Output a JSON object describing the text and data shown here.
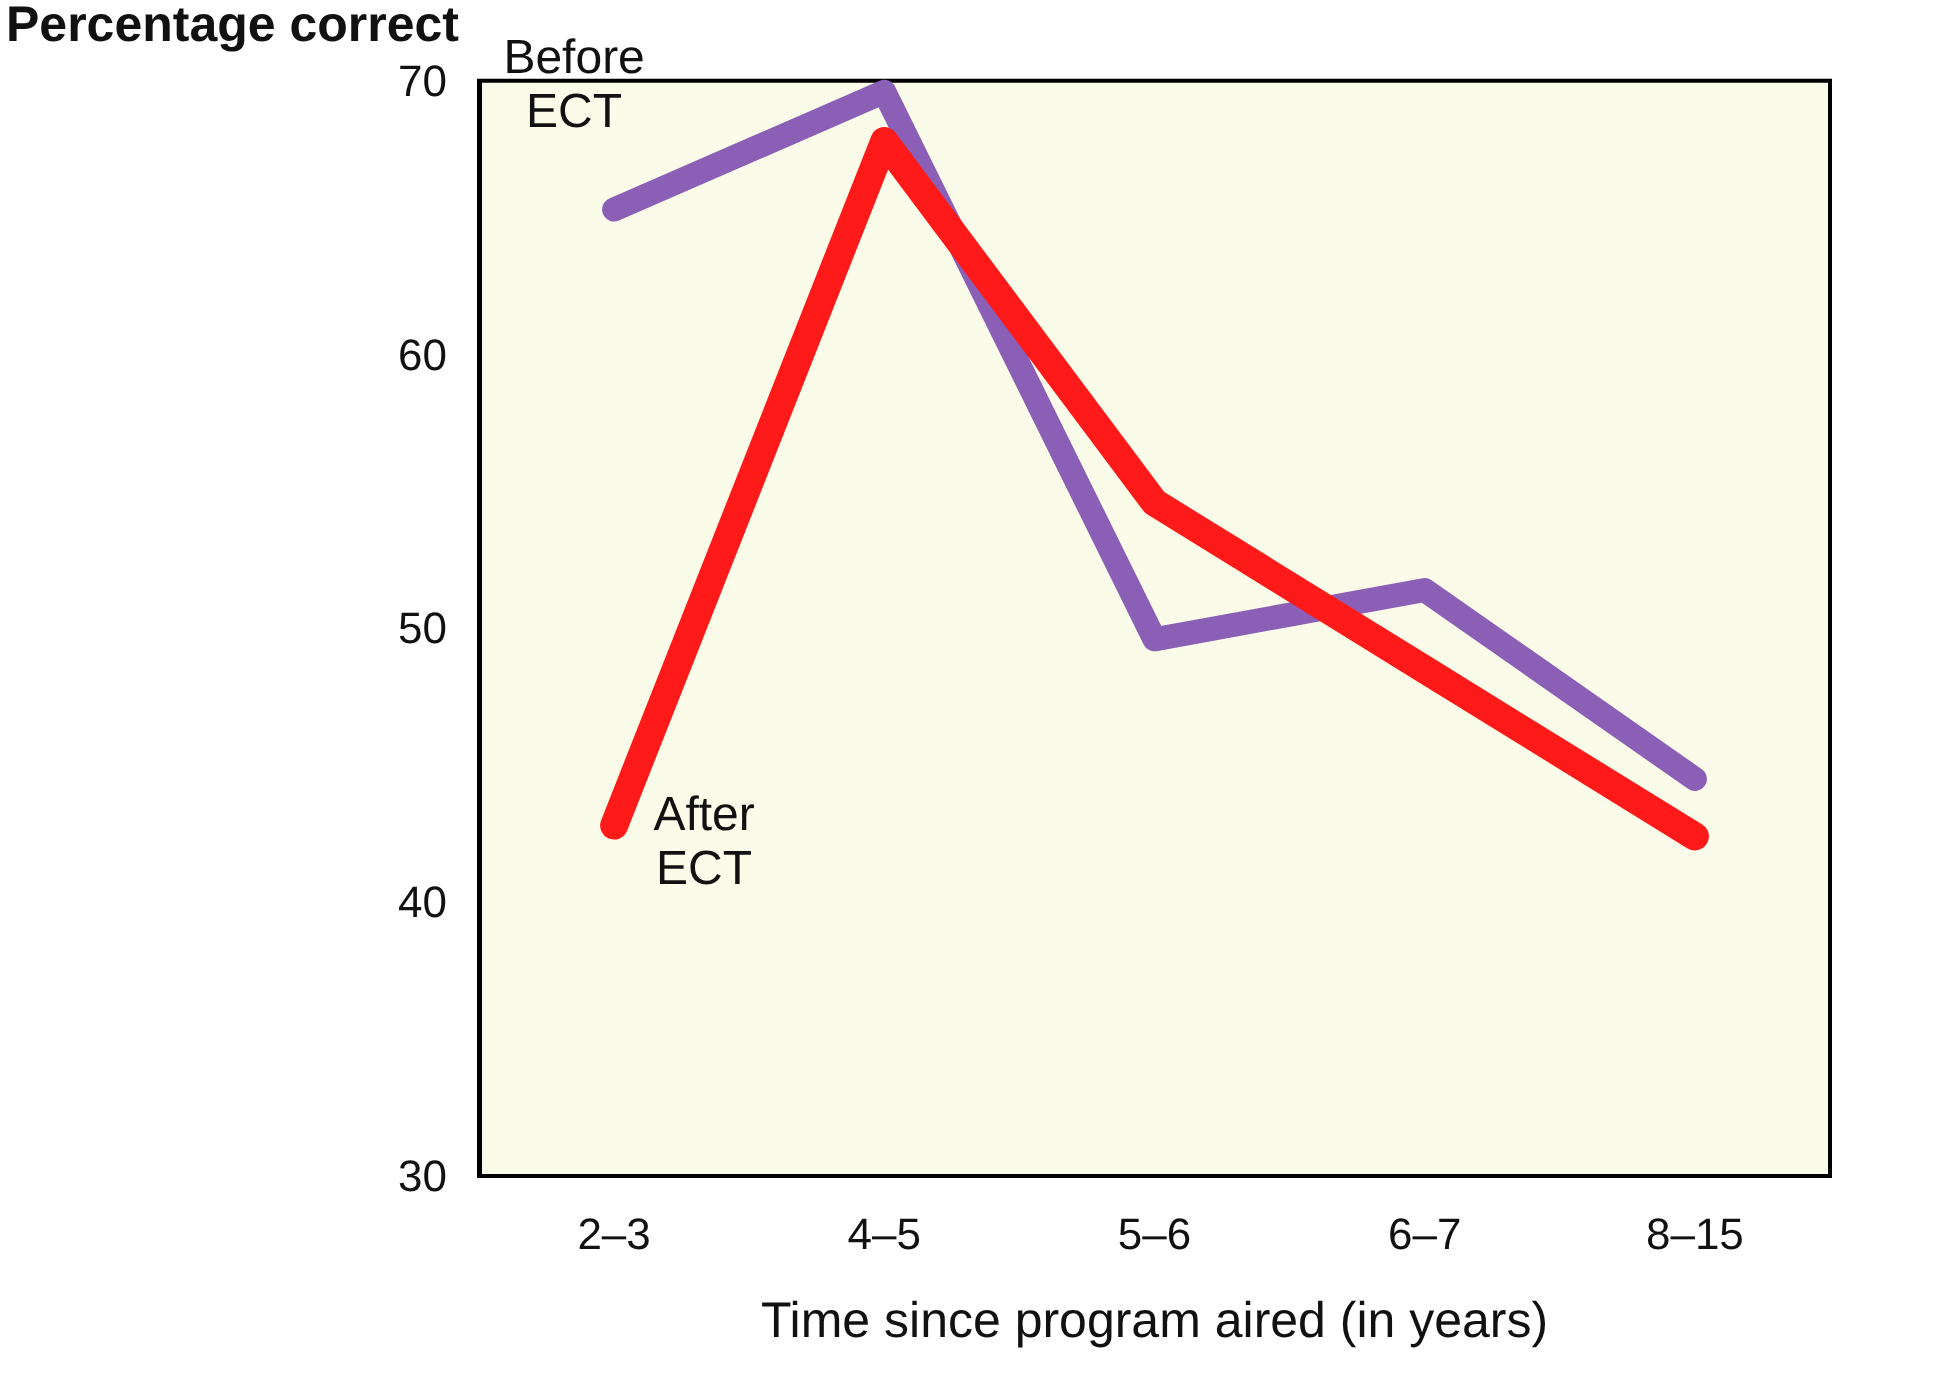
{
  "chart_data": {
    "type": "line",
    "xlabel": "Time since program aired (in years)",
    "ylabel": "Percentage correct",
    "categories": [
      "2–3",
      "4–5",
      "5–6",
      "6–7",
      "8–15"
    ],
    "series": [
      {
        "name": "Before ECT",
        "color": "#8a5fb5",
        "values": [
          65.3,
          69.6,
          49.6,
          51.4,
          44.5
        ]
      },
      {
        "name": "After ECT",
        "color": "#ff1a1a",
        "values": [
          42.8,
          67.8,
          54.6,
          48.5,
          42.4
        ]
      }
    ],
    "ylim": [
      30,
      70
    ],
    "yticks": [
      30,
      40,
      50,
      60,
      70
    ],
    "grid": false,
    "legend": false,
    "marker": "none",
    "line_style": "solid"
  }
}
